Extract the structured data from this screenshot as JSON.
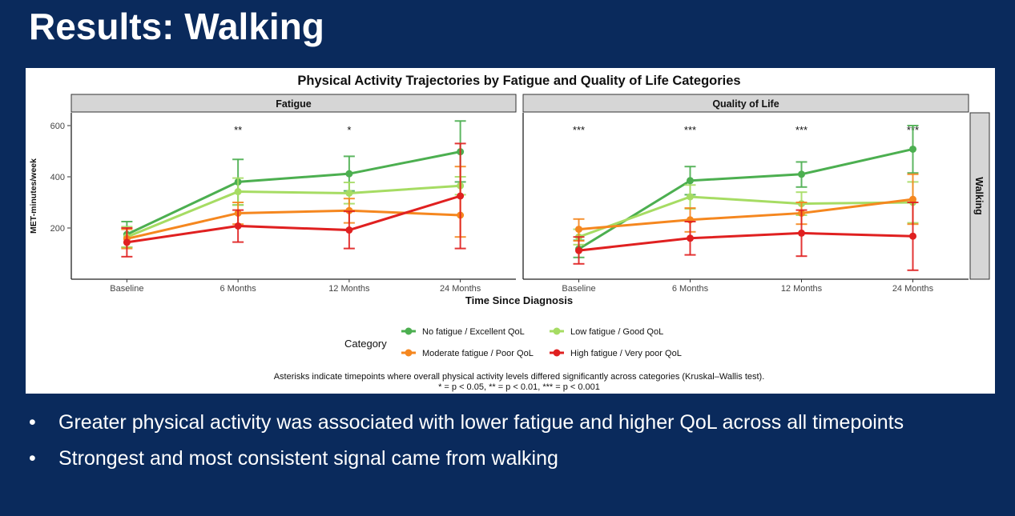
{
  "slide": {
    "title": "Results: Walking",
    "bullet_char": "•",
    "bullets": [
      "Greater physical activity was associated with lower fatigue and higher QoL across all timepoints",
      "Strongest and most consistent signal came from walking"
    ]
  },
  "chart_data": {
    "type": "line",
    "title": "Physical Activity Trajectories by Fatigue and Quality of Life Categories",
    "xlabel": "Time Since Diagnosis",
    "ylabel": "MET-minutes/week",
    "row_strip": "Walking",
    "categories": [
      "Baseline",
      "6 Months",
      "12 Months",
      "24 Months"
    ],
    "ylim": [
      0,
      650
    ],
    "yticks": [
      200,
      400,
      600
    ],
    "legend_title": "Category",
    "series_styles": [
      {
        "name": "No fatigue / Excellent QoL",
        "color": "#4caf50"
      },
      {
        "name": "Low fatigue / Good QoL",
        "color": "#a6dc63"
      },
      {
        "name": "Moderate fatigue / Poor QoL",
        "color": "#f5871f"
      },
      {
        "name": "High fatigue / Very poor QoL",
        "color": "#e02020"
      }
    ],
    "facets": [
      {
        "title": "Fatigue",
        "significance": [
          "",
          "**",
          "*",
          ""
        ],
        "series": [
          {
            "name": "No fatigue / Excellent QoL",
            "values": [
              175,
              380,
              412,
              498
            ],
            "lower": [
              125,
              290,
              345,
              380
            ],
            "upper": [
              225,
              468,
              480,
              618
            ]
          },
          {
            "name": "Low fatigue / Good QoL",
            "values": [
              165,
              342,
              336,
              365
            ],
            "lower": [
              125,
              290,
              295,
              330
            ],
            "upper": [
              205,
              395,
              378,
              400
            ]
          },
          {
            "name": "Moderate fatigue / Poor QoL",
            "values": [
              158,
              258,
              268,
              250
            ],
            "lower": [
              120,
              215,
              220,
              165
            ],
            "upper": [
              195,
              300,
              315,
              440
            ]
          },
          {
            "name": "High fatigue / Very poor QoL",
            "values": [
              144,
              208,
              192,
              325
            ],
            "lower": [
              88,
              145,
              120,
              120
            ],
            "upper": [
              200,
              270,
              265,
              530
            ]
          }
        ]
      },
      {
        "title": "Quality of Life",
        "significance": [
          "***",
          "***",
          "***",
          "***"
        ],
        "series": [
          {
            "name": "No fatigue / Excellent QoL",
            "values": [
              118,
              385,
              410,
              508
            ],
            "lower": [
              85,
              330,
              360,
              415
            ],
            "upper": [
              152,
              440,
              458,
              600
            ]
          },
          {
            "name": "Low fatigue / Good QoL",
            "values": [
              165,
              322,
              295,
              300
            ],
            "lower": [
              135,
              275,
              250,
              220
            ],
            "upper": [
              195,
              368,
              340,
              380
            ]
          },
          {
            "name": "Moderate fatigue / Poor QoL",
            "values": [
              195,
              232,
              258,
              312
            ],
            "lower": [
              150,
              185,
              215,
              215
            ],
            "upper": [
              235,
              278,
              300,
              410
            ]
          },
          {
            "name": "High fatigue / Very poor QoL",
            "values": [
              112,
              160,
              180,
              168
            ],
            "lower": [
              60,
              95,
              90,
              35
            ],
            "upper": [
              165,
              225,
              270,
              300
            ]
          }
        ]
      }
    ],
    "footnote_line1": "Asterisks indicate timepoints where overall physical activity levels differed significantly across categories (Kruskal–Wallis test).",
    "footnote_line2": "* = p < 0.05, ** = p < 0.01, *** = p < 0.001"
  }
}
